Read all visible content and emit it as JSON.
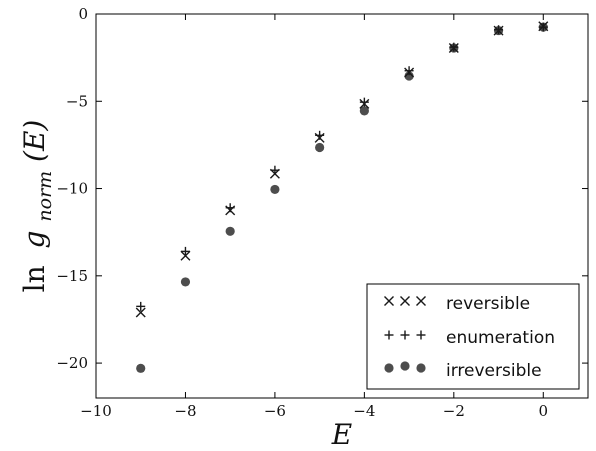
{
  "chart_data": {
    "type": "scatter",
    "xlabel": "E",
    "ylabel": {
      "prefix": "ln",
      "symbol": "g",
      "subscript": "norm",
      "argument": "(E)"
    },
    "xlim": [
      -10,
      1
    ],
    "ylim": [
      -22,
      0
    ],
    "xticks": [
      -10,
      -8,
      -6,
      -4,
      -2,
      0
    ],
    "xtick_labels": [
      "−10",
      "−8",
      "−6",
      "−4",
      "−2",
      "0"
    ],
    "yticks": [
      0,
      -5,
      -10,
      -15,
      -20
    ],
    "ytick_labels": [
      "0",
      "−5",
      "−10",
      "−15",
      "−20"
    ],
    "grid": false,
    "legend_position": "bottom-right",
    "colors": {
      "markers": "#1a1a1a",
      "dots": "#4d4d4d",
      "axes": "#000000"
    },
    "series": [
      {
        "name": "reversible",
        "marker": "x",
        "x": [
          -9,
          -8,
          -7,
          -6,
          -5,
          -4,
          -3,
          -2,
          -1,
          0
        ],
        "y": [
          -17.1,
          -13.85,
          -11.25,
          -9.15,
          -7.1,
          -5.15,
          -3.35,
          -1.95,
          -0.95,
          -0.7
        ]
      },
      {
        "name": "enumeration",
        "marker": "+",
        "x": [
          -9,
          -8,
          -7,
          -6,
          -5,
          -4,
          -3,
          -2,
          -1,
          0
        ],
        "y": [
          -16.75,
          -13.6,
          -11.1,
          -8.95,
          -6.95,
          -5.05,
          -3.25,
          -1.9,
          -0.9,
          -0.75
        ]
      },
      {
        "name": "irreversible",
        "marker": "o",
        "x": [
          -9,
          -8,
          -7,
          -6,
          -5,
          -4,
          -3,
          -2,
          -1,
          0
        ],
        "y": [
          -20.3,
          -15.35,
          -12.45,
          -10.05,
          -7.65,
          -5.55,
          -3.55,
          -1.95,
          -0.95,
          -0.75
        ]
      }
    ]
  }
}
